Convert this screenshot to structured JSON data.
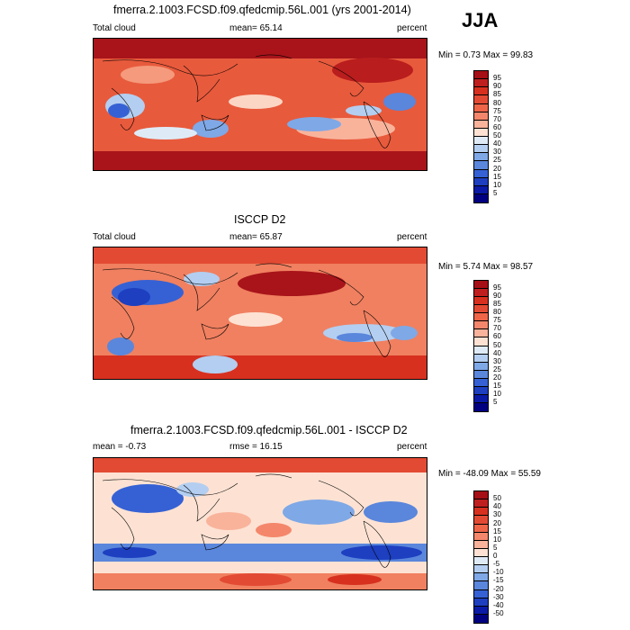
{
  "season_label": "JJA",
  "panels": [
    {
      "title": "fmerra.2.1003.FCSD.f09.qfedcmip.56L.001 (yrs 2001-2014)",
      "left_label": "Total cloud",
      "center_label": "mean=  65.14",
      "right_label": "percent",
      "minmax": "Min =   0.73 Max =  99.83",
      "colorbar_ticks": [
        "95",
        "90",
        "85",
        "80",
        "75",
        "70",
        "60",
        "50",
        "40",
        "30",
        "25",
        "20",
        "15",
        "10",
        "5"
      ],
      "colorbar_colors": [
        "#a50f15",
        "#bf1f1f",
        "#d7301f",
        "#e34a33",
        "#ef6548",
        "#f4876b",
        "#f9b39b",
        "#fde2d3",
        "#deebf7",
        "#b3cef0",
        "#7fa8e6",
        "#5a86dc",
        "#3561d4",
        "#1d3fc0",
        "#0a1aa6",
        "#000080"
      ]
    },
    {
      "title": "ISCCP D2",
      "left_label": "Total cloud",
      "center_label": "mean=  65.87",
      "right_label": "percent",
      "minmax": "Min =   5.74 Max =  98.57",
      "colorbar_ticks": [
        "95",
        "90",
        "85",
        "80",
        "75",
        "70",
        "60",
        "50",
        "40",
        "30",
        "25",
        "20",
        "15",
        "10",
        "5"
      ],
      "colorbar_colors": [
        "#a50f15",
        "#bf1f1f",
        "#d7301f",
        "#e34a33",
        "#ef6548",
        "#f4876b",
        "#f9b39b",
        "#fde2d3",
        "#deebf7",
        "#b3cef0",
        "#7fa8e6",
        "#5a86dc",
        "#3561d4",
        "#1d3fc0",
        "#0a1aa6",
        "#000080"
      ]
    },
    {
      "title": "fmerra.2.1003.FCSD.f09.qfedcmip.56L.001 - ISCCP D2",
      "left_label": "mean =  -0.73",
      "center_label": "rmse =  16.15",
      "right_label": "percent",
      "minmax": "Min = -48.09 Max =  55.59",
      "colorbar_ticks": [
        "50",
        "40",
        "30",
        "20",
        "15",
        "10",
        "5",
        "0",
        "-5",
        "-10",
        "-15",
        "-20",
        "-30",
        "-40",
        "-50"
      ],
      "colorbar_colors": [
        "#a50f15",
        "#bf1f1f",
        "#d7301f",
        "#e34a33",
        "#ef6548",
        "#f4876b",
        "#f9b39b",
        "#fde2d3",
        "#deebf7",
        "#b3cef0",
        "#7fa8e6",
        "#5a86dc",
        "#3561d4",
        "#1d3fc0",
        "#0a1aa6",
        "#000080"
      ]
    }
  ]
}
